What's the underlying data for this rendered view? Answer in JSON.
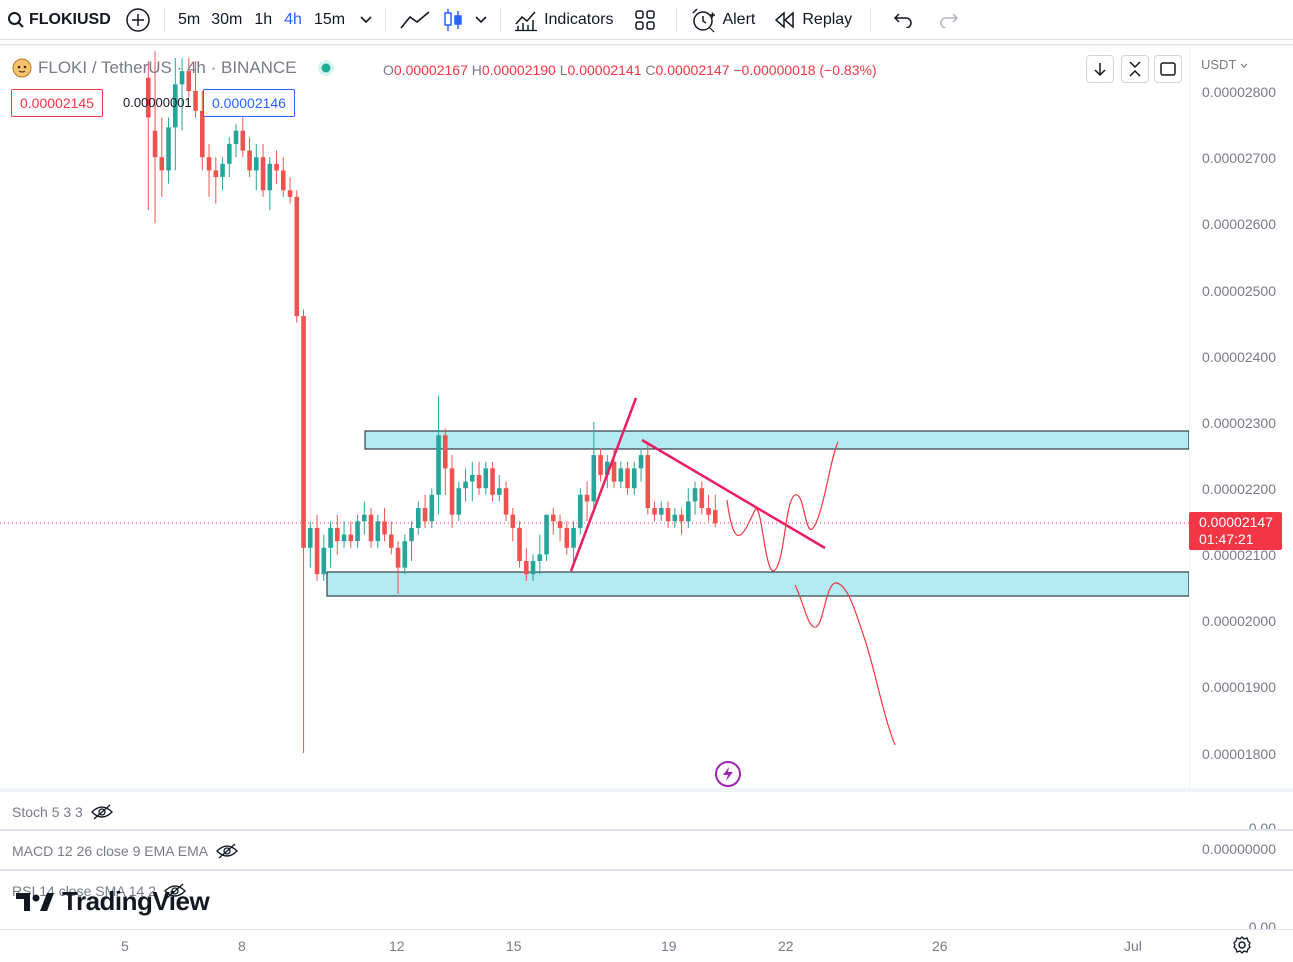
{
  "toolbar": {
    "symbol": "FLOKIUSD",
    "intervals": [
      "5m",
      "30m",
      "1h",
      "4h",
      "15m"
    ],
    "active_interval": "4h",
    "indicators_label": "Indicators",
    "alert_label": "Alert",
    "replay_label": "Replay"
  },
  "legend": {
    "title": "FLOKI / TetherUS · 4h · BINANCE",
    "open_label": "O",
    "open": "0.00002167",
    "high_label": "H",
    "high": "0.00002190",
    "low_label": "L",
    "low": "0.00002141",
    "close_label": "C",
    "close": "0.00002147",
    "change": "−0.00000018 (−0.83%)"
  },
  "quick_trade": {
    "sell_price": "0.00002145",
    "spread": "0.00000001",
    "buy_price": "0.00002146"
  },
  "price_axis": {
    "currency": "USDT",
    "ticks": [
      "0.00002800",
      "0.00002700",
      "0.00002600",
      "0.00002500",
      "0.00002400",
      "0.00002300",
      "0.00002200",
      "0.00002100",
      "0.00002000",
      "0.00001900",
      "0.00001800"
    ],
    "last_price": "0.00002147",
    "countdown": "01:47:21"
  },
  "time_axis": {
    "ticks": [
      "5",
      "8",
      "12",
      "15",
      "19",
      "22",
      "26",
      "Jul"
    ]
  },
  "panes": {
    "stoch_label": "Stoch 5 3 3",
    "macd_label": "MACD 12 26 close 9 EMA EMA",
    "rsi_label": "RSI 14 close SMA 14 2",
    "stoch_value": "0.00",
    "macd_value": "0.00000000",
    "rsi_value": "0.00"
  },
  "branding": {
    "logo_text": "TradingView"
  },
  "colors": {
    "up": "#26a69a",
    "down": "#ef5350",
    "zone_fill": "#b2ebf2",
    "trendline": "#e91e63",
    "drawing": "#f23645",
    "accent": "#2962ff"
  },
  "chart_data": {
    "type": "candlestick",
    "symbol": "FLOKI / TetherUS",
    "timeframe": "4h",
    "exchange": "BINANCE",
    "x_ticks": [
      "5",
      "8",
      "12",
      "15",
      "19",
      "22",
      "26",
      "Jul"
    ],
    "ylim": [
      1.78e-05,
      2.9e-05
    ],
    "zones": [
      {
        "price_top": 2.288e-05,
        "price_bottom": 2.26e-05
      },
      {
        "price_top": 2.075e-05,
        "price_bottom": 2.038e-05
      }
    ],
    "trendlines": [
      {
        "from": [
          2.075e-05
        ],
        "to": [
          2.333e-05
        ]
      },
      {
        "from": [
          2.27e-05
        ],
        "to": [
          2.11e-05
        ]
      }
    ],
    "candles": [
      {
        "o": 2.82,
        "h": 2.845,
        "l": 2.62,
        "c": 2.76
      },
      {
        "o": 2.74,
        "h": 2.86,
        "l": 2.6,
        "c": 2.7
      },
      {
        "o": 2.7,
        "h": 2.76,
        "l": 2.64,
        "c": 2.68
      },
      {
        "o": 2.68,
        "h": 2.76,
        "l": 2.66,
        "c": 2.745
      },
      {
        "o": 2.745,
        "h": 2.85,
        "l": 2.68,
        "c": 2.81
      },
      {
        "o": 2.81,
        "h": 2.85,
        "l": 2.74,
        "c": 2.83
      },
      {
        "o": 2.83,
        "h": 2.85,
        "l": 2.79,
        "c": 2.8
      },
      {
        "o": 2.8,
        "h": 2.845,
        "l": 2.76,
        "c": 2.77
      },
      {
        "o": 2.77,
        "h": 2.8,
        "l": 2.68,
        "c": 2.7
      },
      {
        "o": 2.7,
        "h": 2.72,
        "l": 2.64,
        "c": 2.68
      },
      {
        "o": 2.68,
        "h": 2.7,
        "l": 2.63,
        "c": 2.67
      },
      {
        "o": 2.67,
        "h": 2.7,
        "l": 2.65,
        "c": 2.69
      },
      {
        "o": 2.69,
        "h": 2.73,
        "l": 2.67,
        "c": 2.72
      },
      {
        "o": 2.72,
        "h": 2.75,
        "l": 2.7,
        "c": 2.74
      },
      {
        "o": 2.74,
        "h": 2.76,
        "l": 2.7,
        "c": 2.71
      },
      {
        "o": 2.71,
        "h": 2.73,
        "l": 2.67,
        "c": 2.68
      },
      {
        "o": 2.68,
        "h": 2.72,
        "l": 2.65,
        "c": 2.7
      },
      {
        "o": 2.7,
        "h": 2.72,
        "l": 2.64,
        "c": 2.65
      },
      {
        "o": 2.65,
        "h": 2.7,
        "l": 2.62,
        "c": 2.69
      },
      {
        "o": 2.69,
        "h": 2.71,
        "l": 2.66,
        "c": 2.68
      },
      {
        "o": 2.68,
        "h": 2.7,
        "l": 2.64,
        "c": 2.65
      },
      {
        "o": 2.65,
        "h": 2.67,
        "l": 2.63,
        "c": 2.64
      },
      {
        "o": 2.64,
        "h": 2.65,
        "l": 2.45,
        "c": 2.46
      },
      {
        "o": 2.46,
        "h": 2.47,
        "l": 1.8,
        "c": 2.11
      },
      {
        "o": 2.11,
        "h": 2.15,
        "l": 2.08,
        "c": 2.14
      },
      {
        "o": 2.14,
        "h": 2.16,
        "l": 2.06,
        "c": 2.07
      },
      {
        "o": 2.07,
        "h": 2.13,
        "l": 2.06,
        "c": 2.11
      },
      {
        "o": 2.11,
        "h": 2.15,
        "l": 2.08,
        "c": 2.14
      },
      {
        "o": 2.14,
        "h": 2.16,
        "l": 2.1,
        "c": 2.12
      },
      {
        "o": 2.12,
        "h": 2.15,
        "l": 2.11,
        "c": 2.13
      },
      {
        "o": 2.13,
        "h": 2.15,
        "l": 2.11,
        "c": 2.12
      },
      {
        "o": 2.12,
        "h": 2.16,
        "l": 2.11,
        "c": 2.15
      },
      {
        "o": 2.15,
        "h": 2.18,
        "l": 2.13,
        "c": 2.16
      },
      {
        "o": 2.16,
        "h": 2.17,
        "l": 2.11,
        "c": 2.12
      },
      {
        "o": 2.12,
        "h": 2.16,
        "l": 2.11,
        "c": 2.15
      },
      {
        "o": 2.15,
        "h": 2.17,
        "l": 2.12,
        "c": 2.13
      },
      {
        "o": 2.13,
        "h": 2.15,
        "l": 2.1,
        "c": 2.11
      },
      {
        "o": 2.11,
        "h": 2.12,
        "l": 2.04,
        "c": 2.08
      },
      {
        "o": 2.08,
        "h": 2.13,
        "l": 2.07,
        "c": 2.12
      },
      {
        "o": 2.12,
        "h": 2.15,
        "l": 2.09,
        "c": 2.14
      },
      {
        "o": 2.14,
        "h": 2.18,
        "l": 2.13,
        "c": 2.17
      },
      {
        "o": 2.17,
        "h": 2.19,
        "l": 2.14,
        "c": 2.15
      },
      {
        "o": 2.15,
        "h": 2.2,
        "l": 2.14,
        "c": 2.19
      },
      {
        "o": 2.19,
        "h": 2.34,
        "l": 2.16,
        "c": 2.28
      },
      {
        "o": 2.28,
        "h": 2.29,
        "l": 2.19,
        "c": 2.23
      },
      {
        "o": 2.23,
        "h": 2.25,
        "l": 2.14,
        "c": 2.16
      },
      {
        "o": 2.16,
        "h": 2.21,
        "l": 2.15,
        "c": 2.2
      },
      {
        "o": 2.2,
        "h": 2.23,
        "l": 2.18,
        "c": 2.21
      },
      {
        "o": 2.21,
        "h": 2.24,
        "l": 2.18,
        "c": 2.22
      },
      {
        "o": 2.22,
        "h": 2.24,
        "l": 2.19,
        "c": 2.2
      },
      {
        "o": 2.2,
        "h": 2.24,
        "l": 2.19,
        "c": 2.23
      },
      {
        "o": 2.23,
        "h": 2.24,
        "l": 2.18,
        "c": 2.19
      },
      {
        "o": 2.19,
        "h": 2.22,
        "l": 2.18,
        "c": 2.2
      },
      {
        "o": 2.2,
        "h": 2.21,
        "l": 2.15,
        "c": 2.16
      },
      {
        "o": 2.16,
        "h": 2.17,
        "l": 2.12,
        "c": 2.14
      },
      {
        "o": 2.14,
        "h": 2.15,
        "l": 2.08,
        "c": 2.09
      },
      {
        "o": 2.09,
        "h": 2.11,
        "l": 2.06,
        "c": 2.07
      },
      {
        "o": 2.07,
        "h": 2.1,
        "l": 2.06,
        "c": 2.09
      },
      {
        "o": 2.09,
        "h": 2.13,
        "l": 2.07,
        "c": 2.1
      },
      {
        "o": 2.1,
        "h": 2.16,
        "l": 2.09,
        "c": 2.16
      },
      {
        "o": 2.16,
        "h": 2.17,
        "l": 2.13,
        "c": 2.15
      },
      {
        "o": 2.15,
        "h": 2.16,
        "l": 2.12,
        "c": 2.14
      },
      {
        "o": 2.14,
        "h": 2.15,
        "l": 2.1,
        "c": 2.11
      },
      {
        "o": 2.11,
        "h": 2.15,
        "l": 2.08,
        "c": 2.14
      },
      {
        "o": 2.14,
        "h": 2.2,
        "l": 2.13,
        "c": 2.19
      },
      {
        "o": 2.19,
        "h": 2.21,
        "l": 2.15,
        "c": 2.18
      },
      {
        "o": 2.18,
        "h": 2.3,
        "l": 2.17,
        "c": 2.25
      },
      {
        "o": 2.25,
        "h": 2.26,
        "l": 2.21,
        "c": 2.22
      },
      {
        "o": 2.22,
        "h": 2.25,
        "l": 2.2,
        "c": 2.24
      },
      {
        "o": 2.24,
        "h": 2.26,
        "l": 2.2,
        "c": 2.21
      },
      {
        "o": 2.21,
        "h": 2.24,
        "l": 2.2,
        "c": 2.23
      },
      {
        "o": 2.23,
        "h": 2.24,
        "l": 2.19,
        "c": 2.2
      },
      {
        "o": 2.2,
        "h": 2.24,
        "l": 2.19,
        "c": 2.23
      },
      {
        "o": 2.23,
        "h": 2.26,
        "l": 2.21,
        "c": 2.25
      },
      {
        "o": 2.25,
        "h": 2.27,
        "l": 2.16,
        "c": 2.17
      },
      {
        "o": 2.17,
        "h": 2.18,
        "l": 2.15,
        "c": 2.16
      },
      {
        "o": 2.16,
        "h": 2.18,
        "l": 2.15,
        "c": 2.17
      },
      {
        "o": 2.17,
        "h": 2.18,
        "l": 2.14,
        "c": 2.15
      },
      {
        "o": 2.15,
        "h": 2.17,
        "l": 2.14,
        "c": 2.16
      },
      {
        "o": 2.16,
        "h": 2.17,
        "l": 2.13,
        "c": 2.15
      },
      {
        "o": 2.15,
        "h": 2.2,
        "l": 2.14,
        "c": 2.18
      },
      {
        "o": 2.18,
        "h": 2.21,
        "l": 2.16,
        "c": 2.2
      },
      {
        "o": 2.2,
        "h": 2.21,
        "l": 2.16,
        "c": 2.17
      },
      {
        "o": 2.17,
        "h": 2.19,
        "l": 2.15,
        "c": 2.16
      },
      {
        "o": 2.167,
        "h": 2.19,
        "l": 2.141,
        "c": 2.147
      }
    ]
  }
}
